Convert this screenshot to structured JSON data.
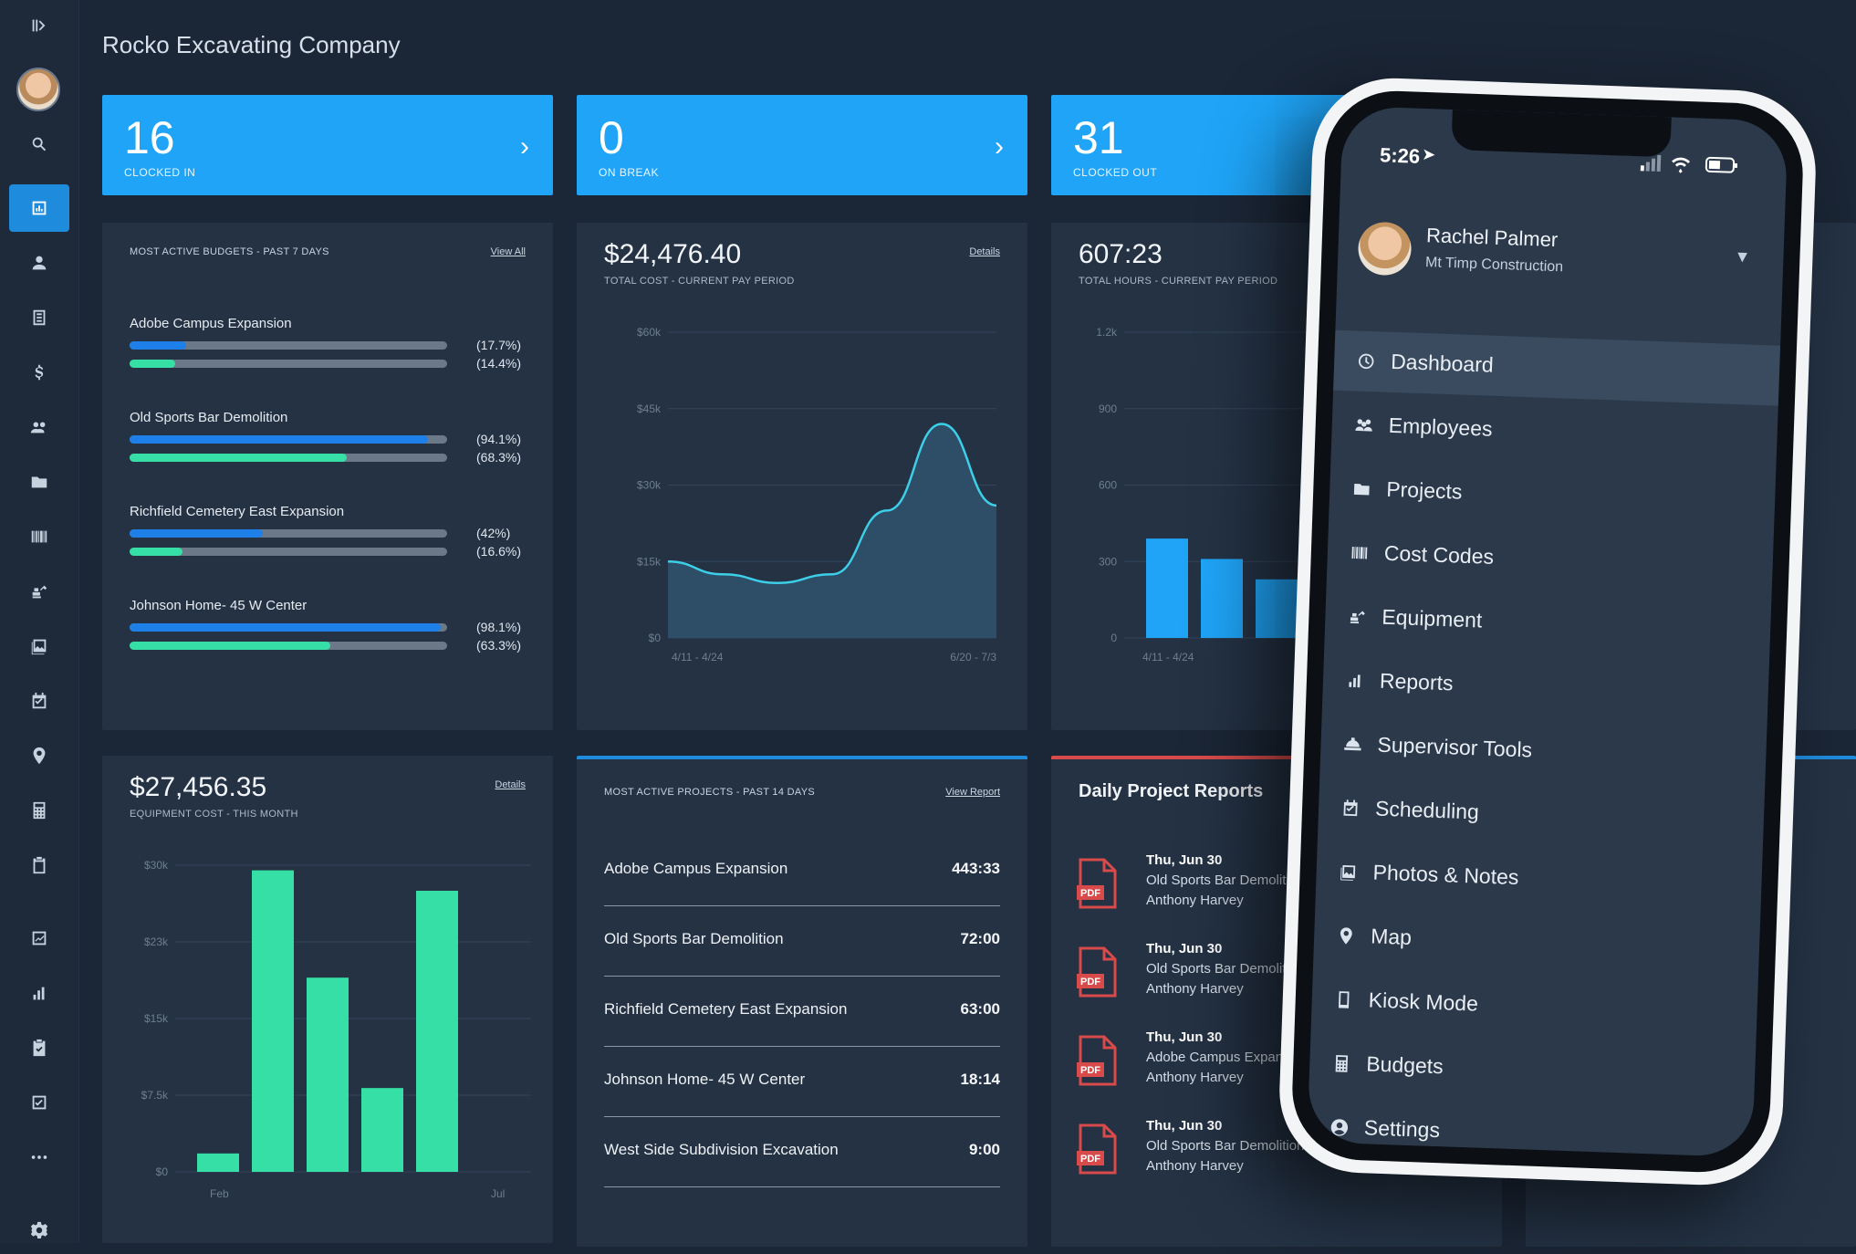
{
  "app": {
    "company": "Rocko Excavating Company"
  },
  "sidebar": {
    "icons": [
      "collapse-icon",
      "avatar",
      "search-icon",
      "dashboard-icon",
      "person-icon",
      "document-icon",
      "dollar-icon",
      "group-icon",
      "folder-icon",
      "barcode-icon",
      "excavator-icon",
      "photo-icon",
      "calendar-check-icon",
      "location-pin-icon",
      "calculator-icon",
      "clipboard-icon",
      "chart-line-icon",
      "bar-chart-icon",
      "clipboard-check-icon",
      "checkbox-icon",
      "more-icon",
      "gear-icon"
    ]
  },
  "stats": [
    {
      "value": "16",
      "label": "CLOCKED IN"
    },
    {
      "value": "0",
      "label": "ON BREAK"
    },
    {
      "value": "31",
      "label": "CLOCKED OUT"
    }
  ],
  "budgets": {
    "title": "MOST ACTIVE BUDGETS - PAST 7 DAYS",
    "link": "View All",
    "items": [
      {
        "name": "Adobe Campus Expansion",
        "p1": "(17.7%)",
        "p2": "(14.4%)",
        "f1": 0.177,
        "f2": 0.144
      },
      {
        "name": "Old Sports Bar Demolition",
        "p1": "(94.1%)",
        "p2": "(68.3%)",
        "f1": 0.941,
        "f2": 0.683
      },
      {
        "name": "Richfield Cemetery East Expansion",
        "p1": "(42%)",
        "p2": "(16.6%)",
        "f1": 0.42,
        "f2": 0.166
      },
      {
        "name": "Johnson Home- 45 W Center",
        "p1": "(98.1%)",
        "p2": "(63.3%)",
        "f1": 0.981,
        "f2": 0.633
      }
    ]
  },
  "total_cost": {
    "value": "$24,476.40",
    "label": "TOTAL COST - CURRENT PAY PERIOD",
    "link": "Details",
    "y_ticks": [
      "$60k",
      "$45k",
      "$30k",
      "$15k",
      "$0"
    ],
    "x_ticks": [
      "4/11 - 4/24",
      "6/20 - 7/3"
    ]
  },
  "total_hours": {
    "value": "607:23",
    "label": "TOTAL HOURS - CURRENT PAY PERIOD",
    "y_ticks": [
      "1.2k",
      "900",
      "600",
      "300",
      "0"
    ],
    "x_ticks": [
      "4/11 - 4/24"
    ]
  },
  "equipment": {
    "value": "$27,456.35",
    "label": "EQUIPMENT COST - THIS MONTH",
    "link": "Details",
    "y_ticks": [
      "$30k",
      "$23k",
      "$15k",
      "$7.5k",
      "$0"
    ],
    "x_ticks": [
      "Feb",
      "Jul"
    ]
  },
  "projects": {
    "title": "MOST ACTIVE PROJECTS - PAST 14 DAYS",
    "link": "View Report",
    "items": [
      {
        "name": "Adobe Campus Expansion",
        "hours": "443:33"
      },
      {
        "name": "Old Sports Bar Demolition",
        "hours": "72:00"
      },
      {
        "name": "Richfield Cemetery East Expansion",
        "hours": "63:00"
      },
      {
        "name": "Johnson Home- 45 W Center",
        "hours": "18:14"
      },
      {
        "name": "West Side Subdivision Excavation",
        "hours": "9:00"
      }
    ]
  },
  "reports": {
    "title": "Daily Project Reports",
    "pdf_label": "PDF",
    "items": [
      {
        "date": "Thu, Jun 30",
        "project": "Old Sports Bar Demolitio",
        "user": "Anthony Harvey"
      },
      {
        "date": "Thu, Jun 30",
        "project": "Old Sports Bar Demolitio",
        "user": "Anthony Harvey"
      },
      {
        "date": "Thu, Jun 30",
        "project": "Adobe Campus Expansio",
        "user": "Anthony Harvey"
      },
      {
        "date": "Thu, Jun 30",
        "project": "Old Sports Bar Demolition",
        "user": "Anthony Harvey"
      }
    ]
  },
  "phone": {
    "time": "5:26",
    "user_name": "Rachel Palmer",
    "company": "Mt Timp Construction",
    "menu": [
      "Dashboard",
      "Employees",
      "Projects",
      "Cost Codes",
      "Equipment",
      "Reports",
      "Supervisor Tools",
      "Scheduling",
      "Photos & Notes",
      "Map",
      "Kiosk Mode",
      "Budgets",
      "Settings"
    ]
  },
  "chart_data": [
    {
      "type": "area",
      "title": "$24,476.40",
      "xlabel": "",
      "ylabel": "",
      "x": [
        "4/11 - 4/24",
        "",
        "",
        "",
        "",
        "",
        "6/20 - 7/3"
      ],
      "y_range": [
        0,
        60000
      ],
      "series": [
        {
          "values": [
            15000,
            12500,
            10800,
            12500,
            25000,
            42000,
            26000
          ]
        }
      ],
      "color": "#3ccfe7"
    },
    {
      "type": "bar",
      "title": "607:23",
      "categories": [
        "4/11 - 4/24",
        "",
        ""
      ],
      "values": [
        390,
        310,
        230
      ],
      "y_range": [
        0,
        1200
      ],
      "colors": [
        "#1fa4f7"
      ]
    },
    {
      "type": "bar",
      "title": "$27,456.35",
      "categories": [
        "Feb",
        "",
        "",
        "",
        "",
        "Jul"
      ],
      "values": [
        1800,
        29500,
        19000,
        8200,
        27500,
        0
      ],
      "y_range": [
        0,
        30000
      ],
      "colors": [
        "#35dfa5"
      ]
    }
  ]
}
